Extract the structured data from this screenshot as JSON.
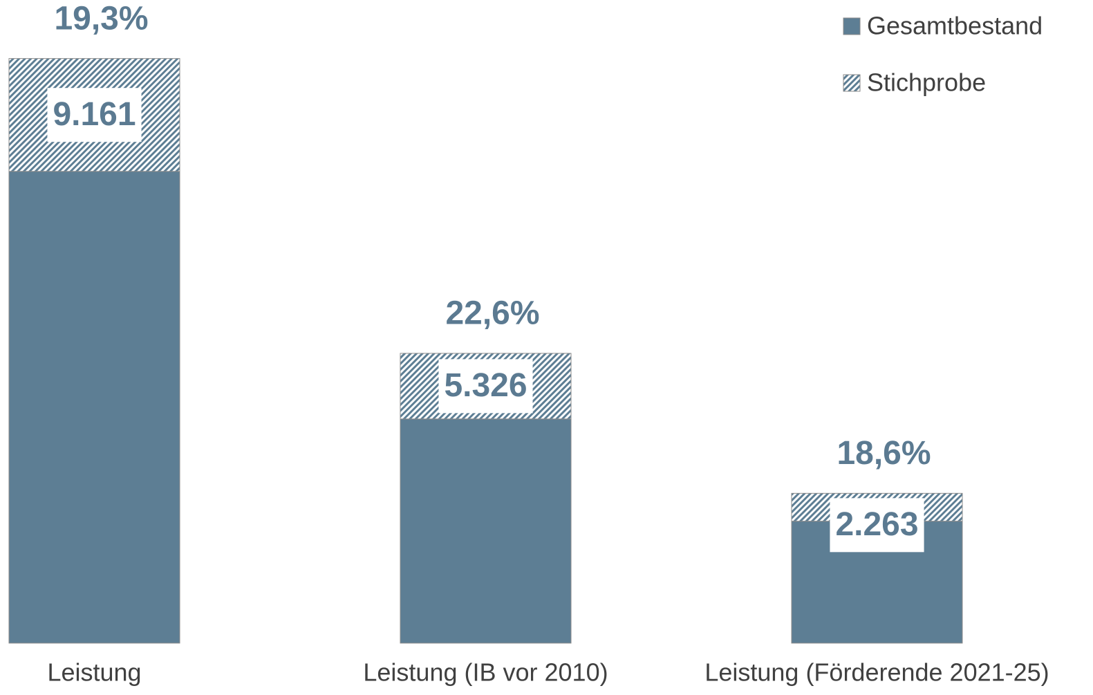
{
  "chart_data": {
    "type": "stacked_bar",
    "categories": [
      "Leistung",
      "Leistung (IB vor 2010)",
      "Leistung (Förderende 2021-25)"
    ],
    "series": [
      {
        "name": "Gesamtbestand",
        "color": "#5d7e94",
        "values": [
          38300,
          18200,
          9900
        ]
      },
      {
        "name": "Stichprobe",
        "color": "#5d7e94",
        "pattern": "hatch",
        "values": [
          9161,
          5326,
          2263
        ],
        "value_labels": [
          "9.161",
          "5.326",
          "2.263"
        ]
      }
    ],
    "annotations": [
      "19,3%",
      "22,6%",
      "18,6%"
    ],
    "ylim": [
      0,
      48000
    ],
    "legend": "top-right"
  }
}
